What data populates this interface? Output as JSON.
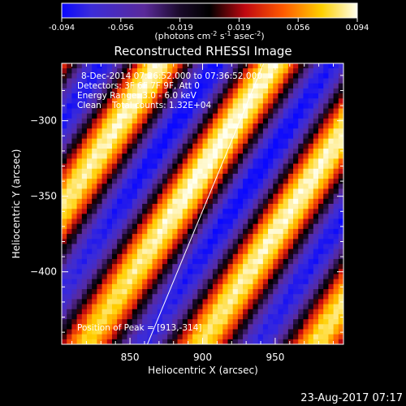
{
  "colorbar": {
    "ticks": [
      "-0.094",
      "-0.056",
      "-0.019",
      "0.019",
      "0.056",
      "0.094"
    ],
    "units_prefix": "(photons cm",
    "units_exp1": "-2",
    "units_mid": " s",
    "units_exp2": "-1",
    "units_mid2": " asec",
    "units_exp3": "-2",
    "units_suffix": ")"
  },
  "chart_data": {
    "type": "heatmap",
    "title": "Reconstructed RHESSI Image",
    "xlabel": "Heliocentric X (arcsec)",
    "ylabel": "Heliocentric Y (arcsec)",
    "xlim": [
      803,
      997
    ],
    "ylim": [
      -448,
      -262
    ],
    "x_ticks": [
      850,
      900,
      950
    ],
    "y_ticks": [
      -300,
      -350,
      -400
    ],
    "colormap": "black-purple-red-yellow-white",
    "color_range": [
      -0.094,
      0.094
    ],
    "fringe_pattern": {
      "direction": "diagonal, lower-left to upper-right",
      "period_arcsec": 65,
      "peak": [
        913,
        -314
      ],
      "limb_line": [
        [
          862,
          -448
        ],
        [
          942,
          -262
        ]
      ]
    },
    "annotations": [
      "8-Dec-2014 07:26:52.000 to 07:36:52.000",
      "Detectors: 3F 6F 7F 9F, Att 0",
      "Energy Range: 3.0 - 6.0 keV",
      "Clean    Total counts: 1.32E+04"
    ],
    "peak_label": "Position of Peak = [913,-314]"
  },
  "timestamp": "23-Aug-2017 07:17"
}
